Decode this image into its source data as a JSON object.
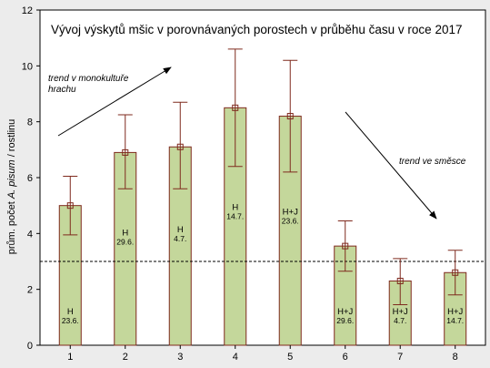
{
  "chart_data": {
    "type": "bar",
    "title": "Vývoj výskytů mšic v porovnávaných porostech v průběhu času v roce 2017",
    "ylabel_parts": [
      "prům. počet ",
      "A. pisum",
      " / rostlinu"
    ],
    "xlabel": "",
    "categories": [
      "1",
      "2",
      "3",
      "4",
      "5",
      "6",
      "7",
      "8"
    ],
    "values": [
      5.0,
      6.9,
      7.1,
      8.5,
      8.2,
      3.55,
      2.3,
      2.6
    ],
    "error_low": [
      3.95,
      5.6,
      5.6,
      6.4,
      6.2,
      2.65,
      1.45,
      1.8
    ],
    "error_high": [
      6.05,
      8.25,
      8.7,
      10.6,
      10.2,
      4.45,
      3.1,
      3.4
    ],
    "bar_labels": [
      [
        "H",
        "23.6."
      ],
      [
        "H",
        "29.6."
      ],
      [
        "H",
        "4.7."
      ],
      [
        "H",
        "14.7."
      ],
      [
        "H+J",
        "23.6."
      ],
      [
        "H+J",
        "29.6."
      ],
      [
        "H+J",
        "4.7."
      ],
      [
        "H+J",
        "14.7."
      ]
    ],
    "reference_line": 3.0,
    "ylim": [
      0,
      12
    ],
    "yticks": [
      0,
      2,
      4,
      6,
      8,
      10,
      12
    ],
    "grid": false,
    "annotations": [
      {
        "text_lines": [
          "trend v monokultuře",
          "hrachu"
        ],
        "direction": "up-right"
      },
      {
        "text_lines": [
          "trend ve směsce"
        ],
        "direction": "down-right"
      }
    ],
    "colors": {
      "bar_fill": "#c4d79b",
      "bar_stroke": "#7f2a1e",
      "error_bar": "#7f2a1e",
      "plot_bg": "#ffffff",
      "page_bg": "#ececec"
    }
  }
}
